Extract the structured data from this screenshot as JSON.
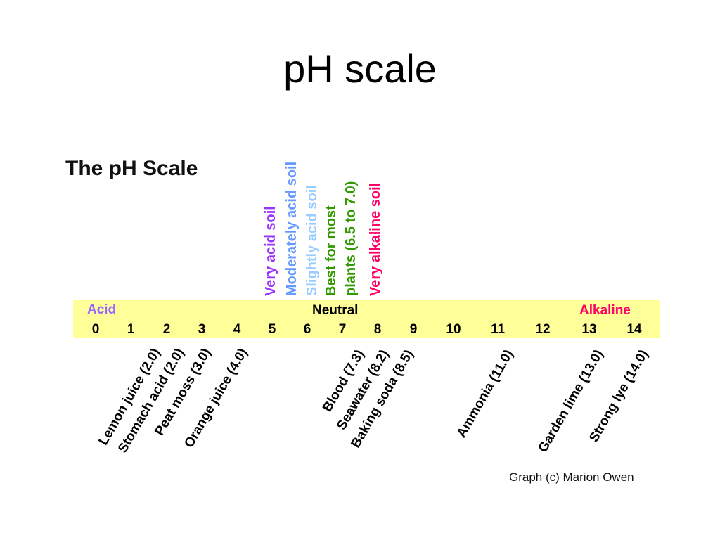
{
  "slide": {
    "title": "pH scale"
  },
  "figure": {
    "heading": "The pH Scale",
    "credit": "Graph (c) Marion Owen",
    "band_color": "#ffff99",
    "soil_labels": [
      {
        "text": "Very acid soil",
        "color": "#9933ff"
      },
      {
        "text": "Moderately acid soil",
        "color": "#6699ff"
      },
      {
        "text": "Slightly acid soil",
        "color": "#99ccff"
      },
      {
        "text": "Best for most",
        "color": "#339900"
      },
      {
        "text": "plants (6.5 to 7.0)",
        "color": "#339900"
      },
      {
        "text": "Very alkaline soil",
        "color": "#ff0066"
      }
    ],
    "band_labels": {
      "acid": {
        "text": "Acid",
        "color": "#9966ff"
      },
      "neutral": {
        "text": "Neutral",
        "color": "#000000"
      },
      "alkaline": {
        "text": "Alkaline",
        "color": "#ff0066"
      }
    },
    "ticks": [
      "0",
      "1",
      "2",
      "3",
      "4",
      "5",
      "6",
      "7",
      "8",
      "9",
      "10",
      "11",
      "12",
      "13",
      "14"
    ],
    "substances": [
      "Lemon juice (2.0)",
      "Stomach acid (2.0)",
      "Peat moss (3.0)",
      "Orange juice (4.0)",
      "Blood (7.3)",
      "Seawater (8.2)",
      "Baking soda (8.5)",
      "Ammonia (11.0)",
      "Garden lime (13.0)",
      "Strong lye (14.0)"
    ]
  }
}
